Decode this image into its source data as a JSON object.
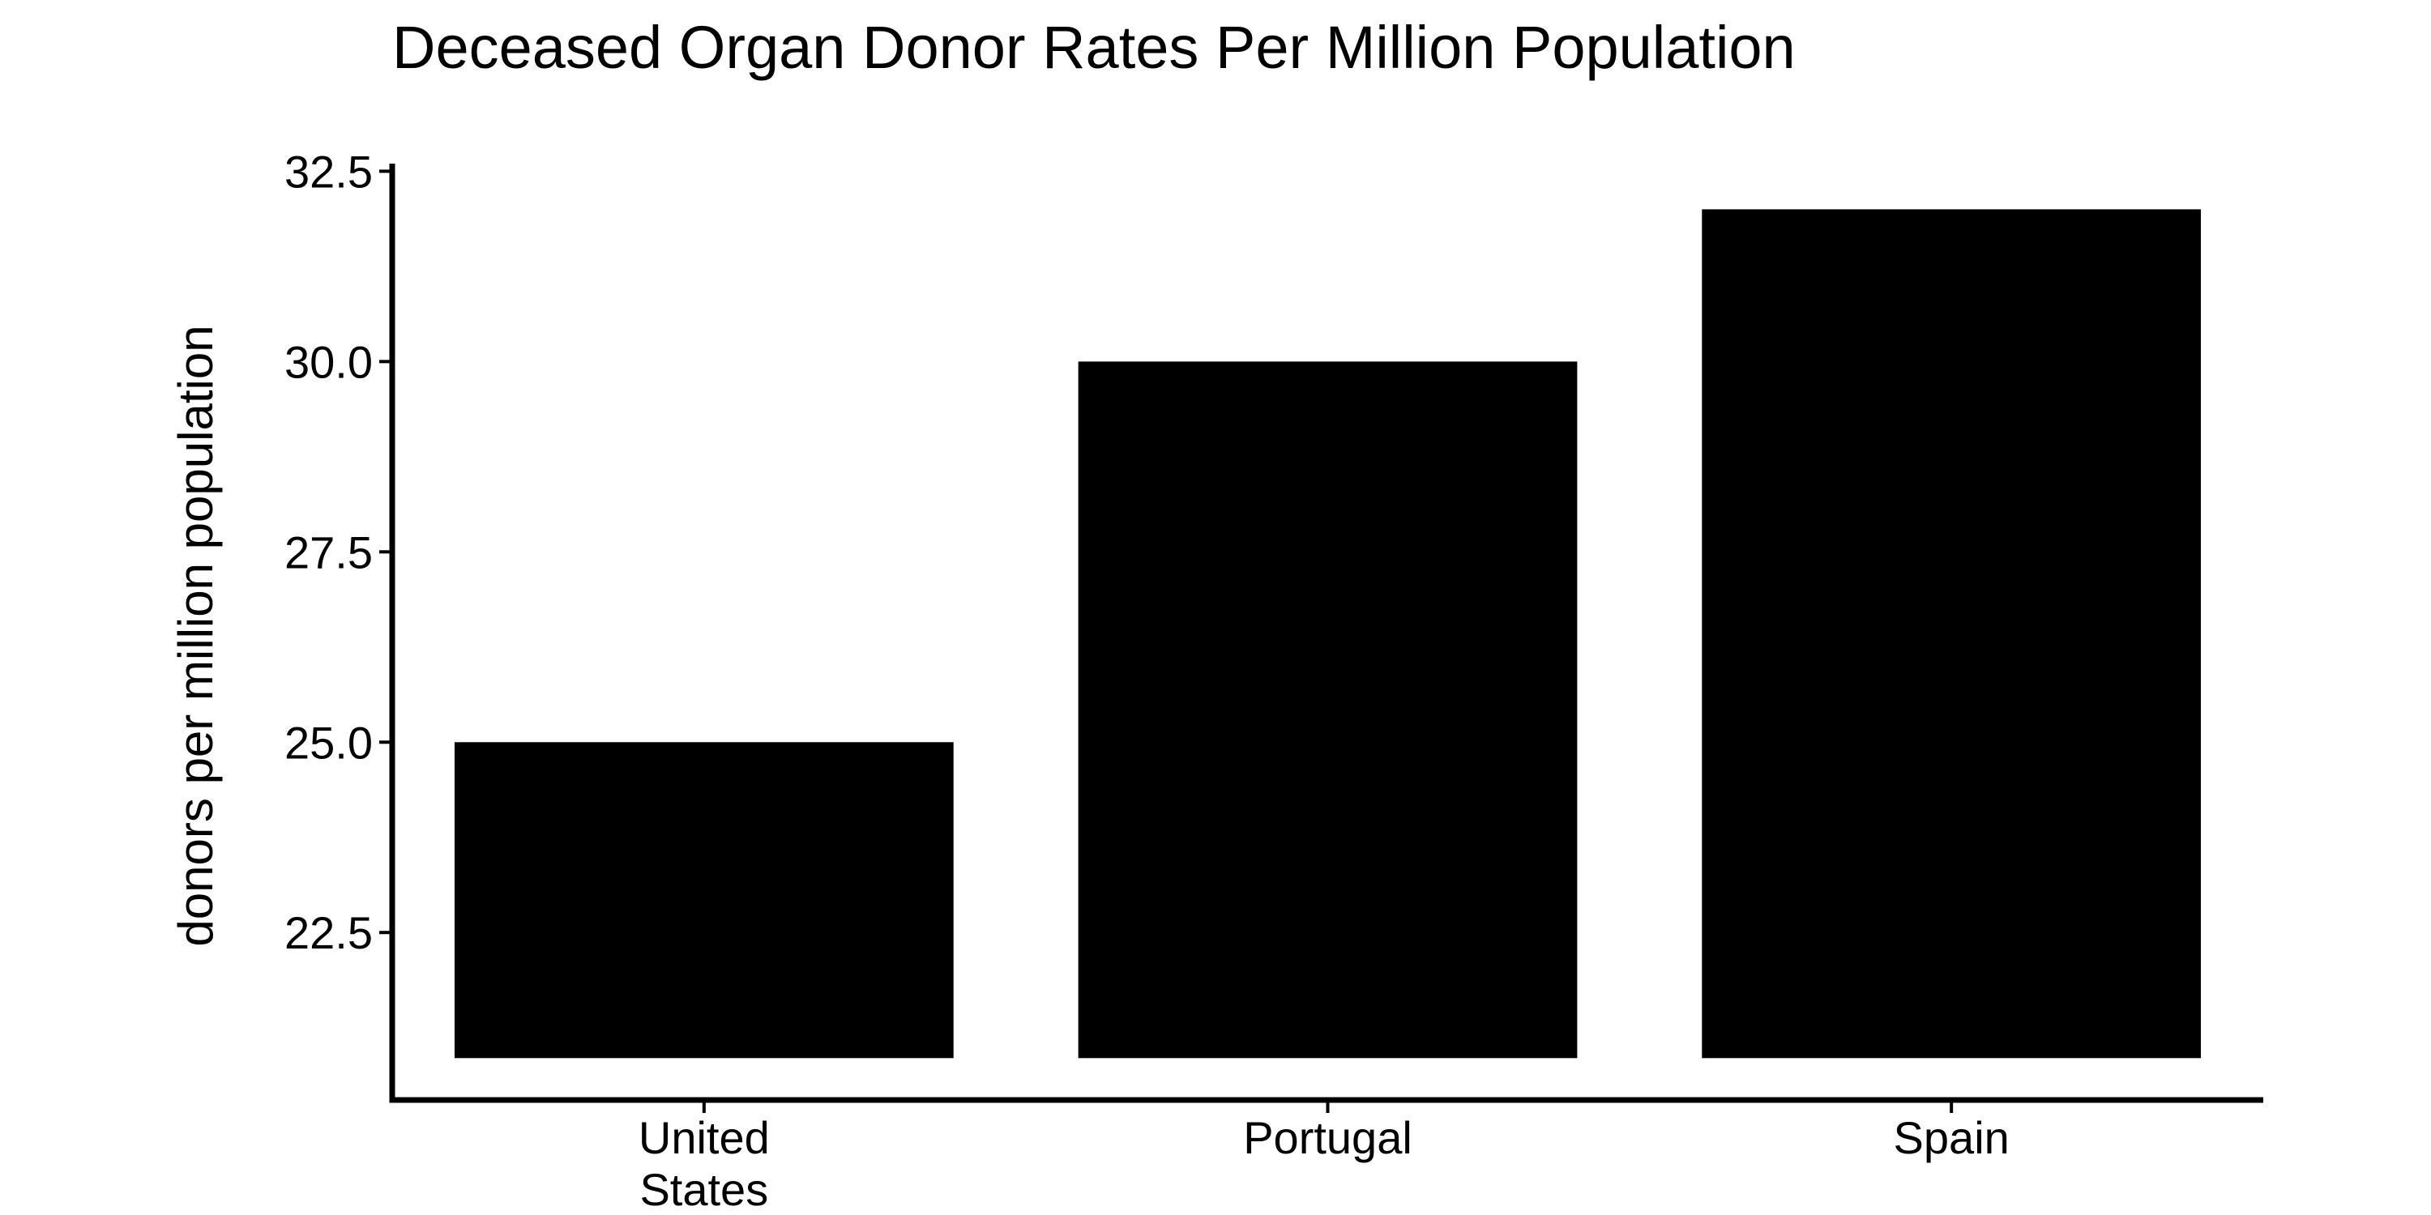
{
  "chart_data": {
    "type": "bar",
    "title": "Deceased Organ Donor Rates Per Million Population",
    "xlabel": "",
    "ylabel": "donors per million population",
    "categories": [
      [
        "United",
        "States"
      ],
      [
        "Portugal"
      ],
      [
        "Spain"
      ]
    ],
    "values": [
      25.0,
      30.0,
      32.0
    ],
    "ylim": [
      20.3,
      32.6
    ],
    "bar_base": 20.85,
    "yticks": [
      22.5,
      25.0,
      27.5,
      30.0,
      32.5
    ],
    "ytick_labels": [
      "22.5",
      "25.0",
      "27.5",
      "30.0",
      "32.5"
    ],
    "bar_color": "#000000",
    "grid": false,
    "legend": "none"
  }
}
